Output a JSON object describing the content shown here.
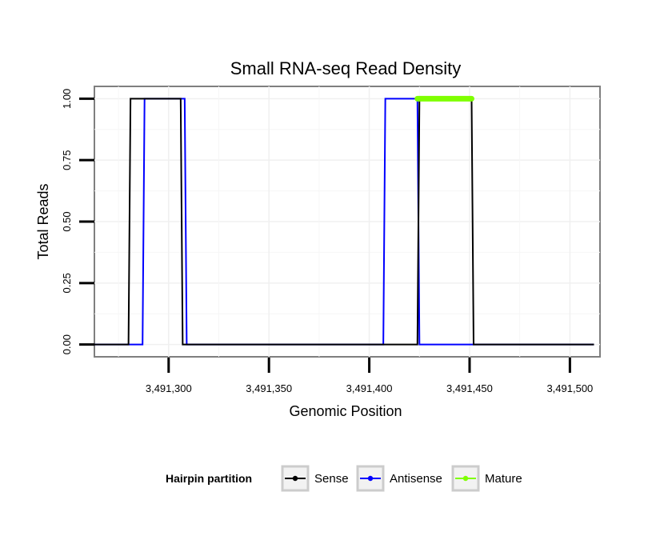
{
  "chart_data": {
    "type": "line",
    "title": "Small RNA-seq Read Density",
    "xlabel": "Genomic Position",
    "ylabel": "Total Reads",
    "xlim": [
      3491263,
      3491515
    ],
    "ylim": [
      -0.05,
      1.05
    ],
    "x_ticks": [
      3491300,
      3491350,
      3491400,
      3491450,
      3491500
    ],
    "x_tick_labels": [
      "3,491,300",
      "3,491,350",
      "3,491,400",
      "3,491,450",
      "3,491,500"
    ],
    "y_ticks": [
      0,
      0.25,
      0.5,
      0.75,
      1
    ],
    "y_tick_labels": [
      "0.00",
      "0.25",
      "0.50",
      "0.75",
      "1.00"
    ],
    "grid": true,
    "series": [
      {
        "name": "Sense",
        "color": "#000000",
        "x": [
          3491263,
          3491280,
          3491281,
          3491306,
          3491307,
          3491424,
          3491425,
          3491451,
          3491452,
          3491512
        ],
        "y": [
          0,
          0,
          1,
          1,
          0,
          0,
          1,
          1,
          0,
          0
        ]
      },
      {
        "name": "Antisense",
        "color": "#0000ff",
        "x": [
          3491263,
          3491287,
          3491288,
          3491308,
          3491309,
          3491407,
          3491408,
          3491424,
          3491425,
          3491512
        ],
        "y": [
          0,
          0,
          1,
          1,
          0,
          0,
          1,
          1,
          0,
          0
        ]
      },
      {
        "name": "Mature",
        "color": "#7fff00",
        "x": [
          3491424,
          3491451
        ],
        "y": [
          1,
          1
        ]
      }
    ],
    "legend": {
      "title": "Hairpin partition",
      "position": "bottom",
      "entries": [
        "Sense",
        "Antisense",
        "Mature"
      ]
    }
  }
}
